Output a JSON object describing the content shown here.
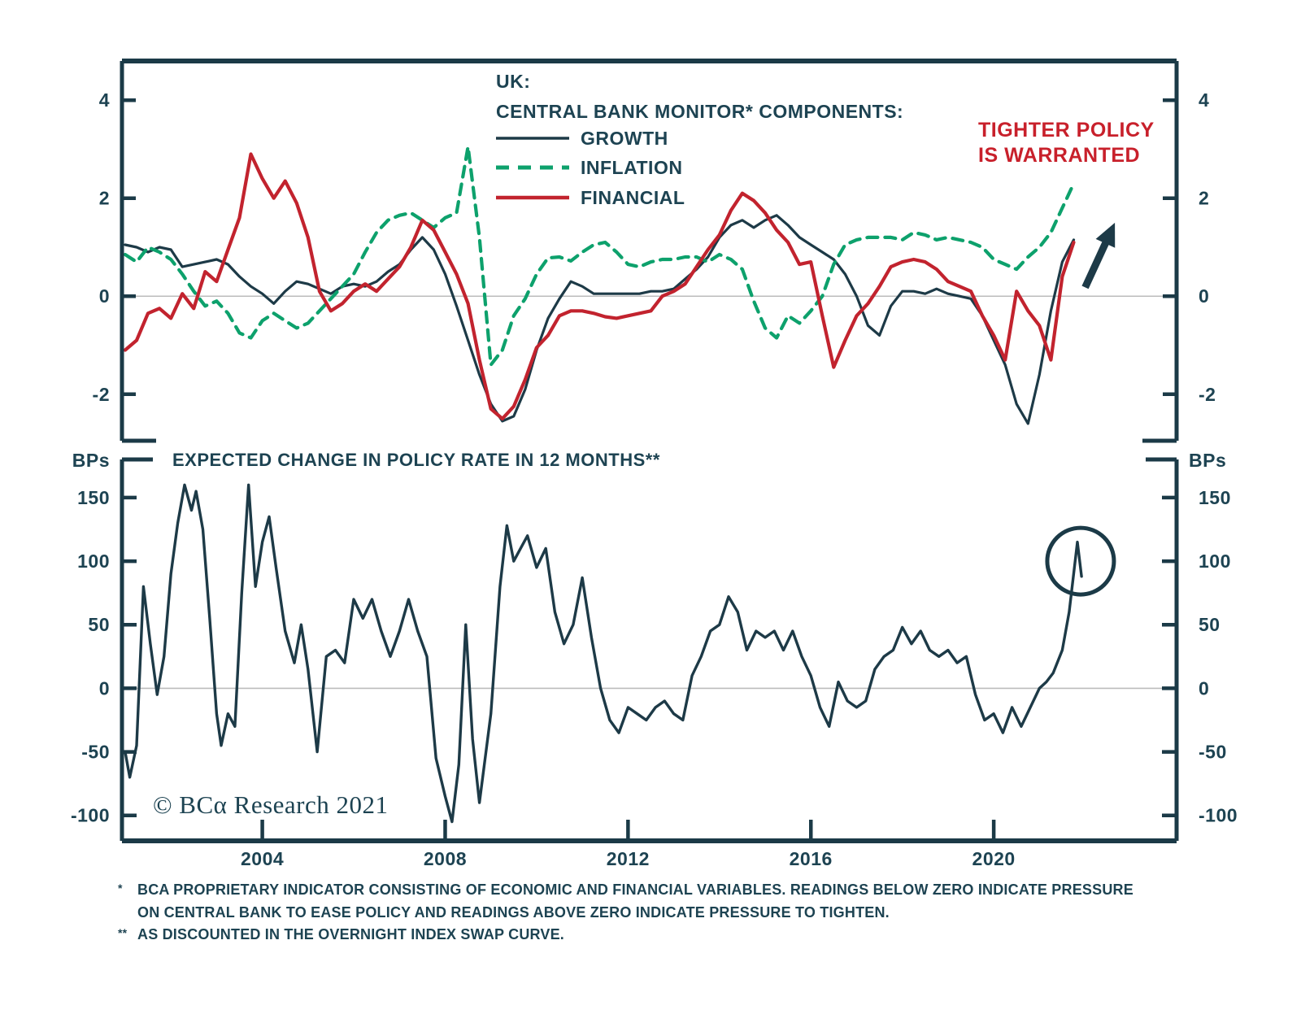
{
  "figure": {
    "source": "© BCα Research 2021",
    "footnotes": [
      {
        "marker": "*",
        "lines": [
          "BCA PROPRIETARY INDICATOR CONSISTING OF ECONOMIC AND FINANCIAL VARIABLES. READINGS BELOW ZERO INDICATE PRESSURE",
          "ON CENTRAL BANK TO EASE POLICY AND READINGS ABOVE ZERO INDICATE PRESSURE TO TIGHTEN."
        ]
      },
      {
        "marker": "**",
        "lines": [
          "AS DISCOUNTED IN THE OVERNIGHT INDEX SWAP CURVE."
        ]
      }
    ]
  },
  "colors": {
    "axis": "#1b3a47",
    "text": "#1d4352",
    "growth": "#1d3a47",
    "inflation": "#0da16c",
    "financial": "#c2232e",
    "annotation": "#c8202b",
    "grid": "#bcbcbc"
  },
  "chart_data": [
    {
      "id": "central-bank-monitor",
      "type": "line",
      "title": "UK:",
      "subtitle": "CENTRAL BANK MONITOR* COMPONENTS:",
      "legend_position": "top-center-inside",
      "grid": "zero-line-only",
      "xlim": [
        2000.93,
        2024.0
      ],
      "ylim": [
        -2.95,
        4.8
      ],
      "yticks": [
        4,
        2,
        0,
        -2
      ],
      "x_start": 2001.0,
      "x_step": 0.25,
      "series": [
        {
          "name": "GROWTH",
          "style": "solid",
          "values": [
            1.05,
            1.0,
            0.9,
            1.0,
            0.95,
            0.6,
            0.65,
            0.7,
            0.75,
            0.65,
            0.4,
            0.2,
            0.05,
            -0.15,
            0.1,
            0.3,
            0.25,
            0.15,
            0.05,
            0.2,
            0.25,
            0.2,
            0.3,
            0.5,
            0.65,
            0.95,
            1.2,
            0.95,
            0.45,
            -0.2,
            -0.9,
            -1.6,
            -2.2,
            -2.55,
            -2.45,
            -1.9,
            -1.1,
            -0.45,
            -0.05,
            0.3,
            0.2,
            0.05,
            0.05,
            0.05,
            0.05,
            0.05,
            0.1,
            0.1,
            0.15,
            0.35,
            0.55,
            0.8,
            1.2,
            1.45,
            1.55,
            1.4,
            1.55,
            1.65,
            1.45,
            1.2,
            1.05,
            0.9,
            0.75,
            0.45,
            0.0,
            -0.6,
            -0.8,
            -0.2,
            0.1,
            0.1,
            0.05,
            0.15,
            0.05,
            0.0,
            -0.05,
            -0.4,
            -0.9,
            -1.4,
            -2.2,
            -2.6,
            -1.6,
            -0.3,
            0.7,
            1.15
          ]
        },
        {
          "name": "INFLATION",
          "style": "dashed",
          "values": [
            0.85,
            0.7,
            1.0,
            0.9,
            0.75,
            0.45,
            0.1,
            -0.2,
            -0.1,
            -0.35,
            -0.75,
            -0.85,
            -0.5,
            -0.35,
            -0.5,
            -0.65,
            -0.55,
            -0.3,
            -0.05,
            0.2,
            0.45,
            0.9,
            1.3,
            1.55,
            1.65,
            1.7,
            1.55,
            1.4,
            1.6,
            1.7,
            3.05,
            1.2,
            -1.4,
            -1.1,
            -0.4,
            -0.05,
            0.45,
            0.78,
            0.8,
            0.72,
            0.9,
            1.05,
            1.1,
            0.9,
            0.65,
            0.6,
            0.7,
            0.75,
            0.75,
            0.8,
            0.8,
            0.7,
            0.85,
            0.75,
            0.55,
            -0.1,
            -0.65,
            -0.85,
            -0.4,
            -0.55,
            -0.3,
            0.0,
            0.65,
            1.05,
            1.15,
            1.2,
            1.2,
            1.2,
            1.15,
            1.3,
            1.25,
            1.15,
            1.2,
            1.15,
            1.1,
            1.0,
            0.75,
            0.65,
            0.55,
            0.8,
            1.0,
            1.3,
            1.8,
            2.3
          ]
        },
        {
          "name": "FINANCIAL",
          "style": "solid",
          "values": [
            -1.1,
            -0.9,
            -0.35,
            -0.25,
            -0.45,
            0.05,
            -0.25,
            0.5,
            0.3,
            0.95,
            1.6,
            2.9,
            2.4,
            2.0,
            2.35,
            1.9,
            1.2,
            0.1,
            -0.3,
            -0.15,
            0.1,
            0.25,
            0.1,
            0.35,
            0.6,
            1.0,
            1.55,
            1.35,
            0.9,
            0.45,
            -0.15,
            -1.3,
            -2.3,
            -2.5,
            -2.25,
            -1.7,
            -1.05,
            -0.8,
            -0.4,
            -0.3,
            -0.3,
            -0.35,
            -0.42,
            -0.45,
            -0.4,
            -0.35,
            -0.3,
            0.0,
            0.1,
            0.25,
            0.6,
            0.95,
            1.25,
            1.75,
            2.1,
            1.95,
            1.7,
            1.35,
            1.1,
            0.65,
            0.7,
            -0.4,
            -1.45,
            -0.9,
            -0.4,
            -0.15,
            0.2,
            0.6,
            0.7,
            0.75,
            0.7,
            0.55,
            0.3,
            0.2,
            0.1,
            -0.4,
            -0.8,
            -1.3,
            0.1,
            -0.3,
            -0.6,
            -1.3,
            0.4,
            1.1
          ]
        }
      ],
      "annotations": {
        "label": {
          "lines": [
            "TIGHTER POLICY",
            "IS WARRANTED"
          ]
        },
        "arrow": {
          "from": [
            2022.0,
            0.18
          ],
          "to": [
            2022.65,
            1.5
          ]
        }
      }
    },
    {
      "id": "expected-policy-rate-change",
      "type": "line",
      "title": "EXPECTED CHANGE IN POLICY RATE IN 12 MONTHS**",
      "ylabel": "BPs",
      "grid": "zero-line-only",
      "xlim": [
        2000.93,
        2024.0
      ],
      "ylim": [
        -120,
        180
      ],
      "yticks": [
        150,
        100,
        50,
        0,
        -50,
        -100
      ],
      "xticks": [
        2004,
        2008,
        2012,
        2016,
        2020
      ],
      "series": [
        {
          "name": "EXPECTED CHANGE IN POLICY RATE IN 12 MONTHS (BPs)",
          "style": "solid",
          "x": [
            2001.0,
            2001.1,
            2001.25,
            2001.4,
            2001.55,
            2001.7,
            2001.85,
            2002.0,
            2002.15,
            2002.3,
            2002.45,
            2002.55,
            2002.7,
            2002.85,
            2003.0,
            2003.1,
            2003.25,
            2003.4,
            2003.55,
            2003.7,
            2003.85,
            2004.0,
            2004.15,
            2004.3,
            2004.5,
            2004.7,
            2004.85,
            2005.0,
            2005.2,
            2005.4,
            2005.6,
            2005.8,
            2006.0,
            2006.2,
            2006.4,
            2006.6,
            2006.8,
            2007.0,
            2007.2,
            2007.4,
            2007.6,
            2007.8,
            2008.0,
            2008.15,
            2008.3,
            2008.45,
            2008.6,
            2008.75,
            2009.0,
            2009.2,
            2009.35,
            2009.5,
            2009.65,
            2009.8,
            2010.0,
            2010.2,
            2010.4,
            2010.6,
            2010.8,
            2011.0,
            2011.2,
            2011.4,
            2011.6,
            2011.8,
            2012.0,
            2012.2,
            2012.4,
            2012.6,
            2012.8,
            2013.0,
            2013.2,
            2013.4,
            2013.6,
            2013.8,
            2014.0,
            2014.2,
            2014.4,
            2014.6,
            2014.8,
            2015.0,
            2015.2,
            2015.4,
            2015.6,
            2015.8,
            2016.0,
            2016.2,
            2016.4,
            2016.6,
            2016.8,
            2017.0,
            2017.2,
            2017.4,
            2017.6,
            2017.8,
            2018.0,
            2018.2,
            2018.4,
            2018.6,
            2018.8,
            2019.0,
            2019.2,
            2019.4,
            2019.6,
            2019.8,
            2020.0,
            2020.2,
            2020.4,
            2020.6,
            2020.8,
            2021.0,
            2021.15,
            2021.3,
            2021.5,
            2021.65,
            2021.83,
            2021.92
          ],
          "values": [
            -50,
            -70,
            -45,
            80,
            35,
            -5,
            25,
            90,
            130,
            160,
            140,
            155,
            125,
            55,
            -20,
            -45,
            -20,
            -30,
            75,
            160,
            80,
            115,
            135,
            95,
            45,
            20,
            50,
            15,
            -50,
            25,
            30,
            20,
            70,
            55,
            70,
            45,
            25,
            45,
            70,
            45,
            25,
            -55,
            -85,
            -105,
            -60,
            50,
            -40,
            -90,
            -20,
            80,
            128,
            100,
            110,
            120,
            95,
            110,
            60,
            35,
            50,
            87,
            40,
            0,
            -25,
            -35,
            -15,
            -20,
            -25,
            -15,
            -10,
            -20,
            -25,
            10,
            25,
            45,
            50,
            72,
            60,
            30,
            45,
            40,
            45,
            30,
            45,
            25,
            10,
            -15,
            -30,
            5,
            -10,
            -15,
            -10,
            15,
            25,
            30,
            48,
            35,
            45,
            30,
            25,
            30,
            20,
            25,
            -5,
            -25,
            -20,
            -35,
            -15,
            -30,
            -15,
            0,
            5,
            12,
            30,
            60,
            115,
            88
          ]
        }
      ],
      "annotations": {
        "circle": {
          "center": [
            2021.9,
            100
          ],
          "radius_px": 41
        }
      }
    }
  ]
}
